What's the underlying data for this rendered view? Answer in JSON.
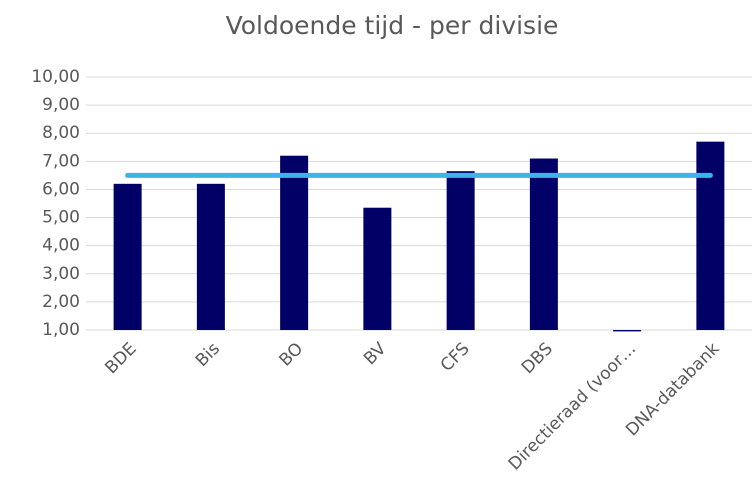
{
  "chart_data": {
    "type": "bar",
    "title": "Voldoende tijd - per divisie",
    "categories": [
      "BDE",
      "Bis",
      "BO",
      "BV",
      "CFS",
      "DBS",
      "Directieraad (voor…",
      "DNA-databank"
    ],
    "series": [
      {
        "type": "bar",
        "color": "#000066",
        "values": [
          6.2,
          6.2,
          7.2,
          5.35,
          6.65,
          7.1,
          0.95,
          7.7
        ]
      },
      {
        "type": "line",
        "color": "#3bb4ea",
        "values": [
          6.5,
          6.5,
          6.5,
          6.5,
          6.5,
          6.5,
          6.5,
          6.5
        ]
      }
    ],
    "ylim": [
      1,
      10
    ],
    "yticks": [
      {
        "value": 1,
        "label": "1,00"
      },
      {
        "value": 2,
        "label": "2,00"
      },
      {
        "value": 3,
        "label": "3,00"
      },
      {
        "value": 4,
        "label": "4,00"
      },
      {
        "value": 5,
        "label": "5,00"
      },
      {
        "value": 6,
        "label": "6,00"
      },
      {
        "value": 7,
        "label": "7,00"
      },
      {
        "value": 8,
        "label": "8,00"
      },
      {
        "value": 9,
        "label": "9,00"
      },
      {
        "value": 10,
        "label": "10,00"
      }
    ],
    "grid": true
  }
}
